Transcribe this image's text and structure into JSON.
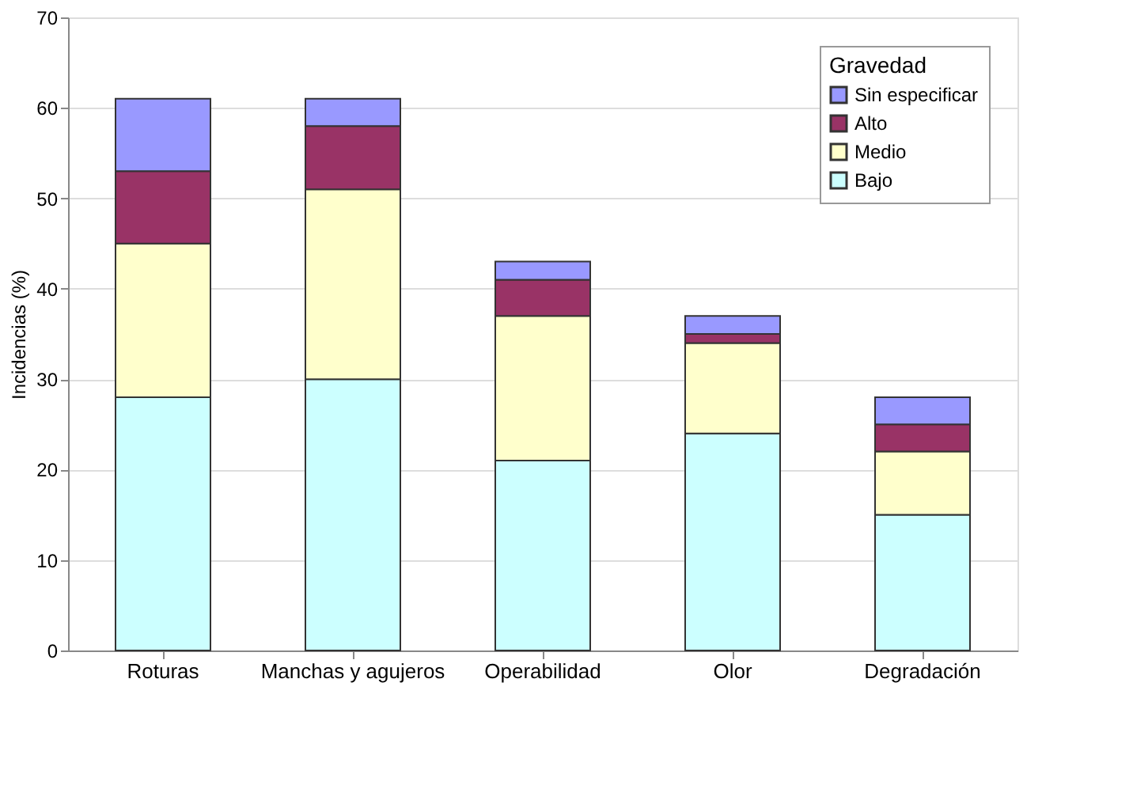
{
  "chart_data": {
    "type": "bar",
    "stacked": true,
    "ylabel": "Incidencias (%)",
    "legend_title": "Gravedad",
    "legend": "top right",
    "grid": "y",
    "categories": [
      "Roturas",
      "Manchas y agujeros",
      "Operabilidad",
      "Olor",
      "Degradación"
    ],
    "ylim": [
      0,
      70
    ],
    "yticks": [
      0,
      10,
      20,
      30,
      40,
      50,
      60,
      70
    ],
    "series": [
      {
        "name": "Bajo",
        "color": "#ccffff",
        "values": [
          28,
          30,
          21,
          24,
          15
        ]
      },
      {
        "name": "Medio",
        "color": "#ffffcc",
        "values": [
          17,
          21,
          16,
          10,
          7
        ]
      },
      {
        "name": "Alto",
        "color": "#993366",
        "values": [
          8,
          7,
          4,
          1,
          3
        ]
      },
      {
        "name": "Sin especificar",
        "color": "#9999ff",
        "values": [
          8,
          3,
          2,
          2,
          3
        ]
      }
    ]
  }
}
